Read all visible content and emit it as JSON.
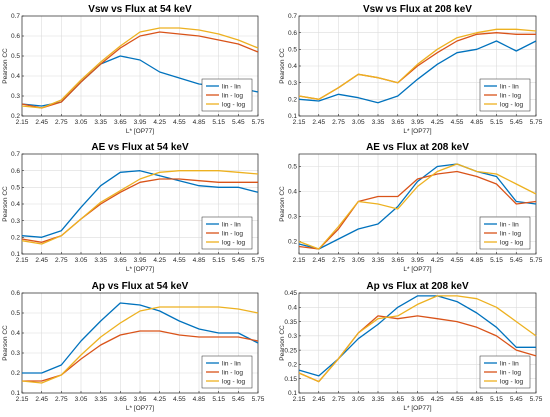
{
  "chart_data": [
    {
      "type": "line",
      "title": "Vsw vs Flux at 54 keV",
      "xlabel": "L* [OP77]",
      "ylabel": "Pearson CC",
      "x": [
        2.15,
        2.45,
        2.75,
        3.05,
        3.35,
        3.65,
        3.95,
        4.25,
        4.55,
        4.85,
        5.15,
        5.45,
        5.75
      ],
      "xticks": [
        "2.15",
        "2.45",
        "2.75",
        "3.05",
        "3.35",
        "3.65",
        "3.95",
        "4.25",
        "4.55",
        "4.85",
        "5.15",
        "5.45",
        "5.75"
      ],
      "ylim": [
        0.2,
        0.7
      ],
      "yticks": [
        "0.2",
        "0.3",
        "0.4",
        "0.5",
        "0.6",
        "0.7"
      ],
      "legend_position": "bottom-right",
      "series": [
        {
          "name": "lin - lin",
          "color": "#0072bd",
          "values": [
            0.26,
            0.25,
            0.27,
            0.37,
            0.46,
            0.5,
            0.48,
            0.42,
            0.39,
            0.36,
            0.35,
            0.34,
            0.32
          ]
        },
        {
          "name": "lin - log",
          "color": "#d95319",
          "values": [
            0.26,
            0.24,
            0.27,
            0.37,
            0.46,
            0.54,
            0.6,
            0.62,
            0.61,
            0.6,
            0.58,
            0.56,
            0.52
          ]
        },
        {
          "name": "log - log",
          "color": "#edb120",
          "values": [
            0.25,
            0.24,
            0.28,
            0.38,
            0.47,
            0.55,
            0.62,
            0.64,
            0.64,
            0.63,
            0.61,
            0.58,
            0.54
          ]
        }
      ]
    },
    {
      "type": "line",
      "title": "Vsw vs Flux at 208 keV",
      "xlabel": "L* [OP77]",
      "ylabel": "Pearson CC",
      "x": [
        2.15,
        2.45,
        2.75,
        3.05,
        3.35,
        3.65,
        3.95,
        4.25,
        4.55,
        4.85,
        5.15,
        5.45,
        5.75
      ],
      "xticks": [
        "2.15",
        "2.45",
        "2.75",
        "3.05",
        "3.35",
        "3.65",
        "3.95",
        "4.25",
        "4.55",
        "4.85",
        "5.15",
        "5.45",
        "5.75"
      ],
      "ylim": [
        0.1,
        0.7
      ],
      "yticks": [
        "0.1",
        "0.2",
        "0.3",
        "0.4",
        "0.5",
        "0.6",
        "0.7"
      ],
      "legend_position": "bottom-right",
      "series": [
        {
          "name": "lin - lin",
          "color": "#0072bd",
          "values": [
            0.2,
            0.19,
            0.23,
            0.21,
            0.18,
            0.22,
            0.32,
            0.41,
            0.48,
            0.5,
            0.55,
            0.49,
            0.55
          ]
        },
        {
          "name": "lin - log",
          "color": "#d95319",
          "values": [
            0.22,
            0.2,
            0.27,
            0.35,
            0.33,
            0.3,
            0.4,
            0.48,
            0.55,
            0.59,
            0.6,
            0.59,
            0.59
          ]
        },
        {
          "name": "log - log",
          "color": "#edb120",
          "values": [
            0.22,
            0.2,
            0.27,
            0.35,
            0.33,
            0.3,
            0.41,
            0.5,
            0.57,
            0.6,
            0.62,
            0.62,
            0.61
          ]
        }
      ]
    },
    {
      "type": "line",
      "title": "AE vs Flux at 54 keV",
      "xlabel": "L* [OP77]",
      "ylabel": "Pearson CC",
      "x": [
        2.15,
        2.45,
        2.75,
        3.05,
        3.35,
        3.65,
        3.95,
        4.25,
        4.55,
        4.85,
        5.15,
        5.45,
        5.75
      ],
      "xticks": [
        "2.15",
        "2.45",
        "2.75",
        "3.05",
        "3.35",
        "3.65",
        "3.95",
        "4.25",
        "4.55",
        "4.85",
        "5.15",
        "5.45",
        "5.75"
      ],
      "ylim": [
        0.1,
        0.7
      ],
      "yticks": [
        "0.1",
        "0.2",
        "0.3",
        "0.4",
        "0.5",
        "0.6",
        "0.7"
      ],
      "legend_position": "bottom-right",
      "series": [
        {
          "name": "lin - lin",
          "color": "#0072bd",
          "values": [
            0.21,
            0.2,
            0.24,
            0.38,
            0.51,
            0.59,
            0.6,
            0.57,
            0.54,
            0.51,
            0.5,
            0.5,
            0.47
          ]
        },
        {
          "name": "lin - log",
          "color": "#d95319",
          "values": [
            0.19,
            0.17,
            0.21,
            0.31,
            0.4,
            0.47,
            0.53,
            0.55,
            0.55,
            0.54,
            0.53,
            0.53,
            0.53
          ]
        },
        {
          "name": "log - log",
          "color": "#edb120",
          "values": [
            0.18,
            0.16,
            0.21,
            0.31,
            0.41,
            0.48,
            0.55,
            0.59,
            0.6,
            0.6,
            0.6,
            0.59,
            0.58
          ]
        }
      ]
    },
    {
      "type": "line",
      "title": "AE vs Flux at 208 keV",
      "xlabel": "L* [OP77]",
      "ylabel": "Pearson CC",
      "x": [
        2.15,
        2.45,
        2.75,
        3.05,
        3.35,
        3.65,
        3.95,
        4.25,
        4.55,
        4.85,
        5.15,
        5.45,
        5.75
      ],
      "xticks": [
        "2.15",
        "2.45",
        "2.75",
        "3.05",
        "3.35",
        "3.65",
        "3.95",
        "4.25",
        "4.55",
        "4.85",
        "5.15",
        "5.45",
        "5.75"
      ],
      "ylim": [
        0.15,
        0.55
      ],
      "yticks": [
        "0.2",
        "0.3",
        "0.4",
        "0.5"
      ],
      "legend_position": "bottom-right",
      "series": [
        {
          "name": "lin - lin",
          "color": "#0072bd",
          "values": [
            0.19,
            0.17,
            0.21,
            0.25,
            0.27,
            0.34,
            0.44,
            0.5,
            0.51,
            0.48,
            0.46,
            0.36,
            0.35
          ]
        },
        {
          "name": "lin - log",
          "color": "#d95319",
          "values": [
            0.18,
            0.17,
            0.25,
            0.36,
            0.38,
            0.38,
            0.45,
            0.47,
            0.48,
            0.46,
            0.43,
            0.35,
            0.36
          ]
        },
        {
          "name": "log - log",
          "color": "#edb120",
          "values": [
            0.2,
            0.17,
            0.26,
            0.36,
            0.35,
            0.33,
            0.42,
            0.48,
            0.51,
            0.48,
            0.47,
            0.43,
            0.39
          ]
        }
      ]
    },
    {
      "type": "line",
      "title": "Ap vs Flux at 54 keV",
      "xlabel": "L* [OP77]",
      "ylabel": "Pearson CC",
      "x": [
        2.15,
        2.45,
        2.75,
        3.05,
        3.35,
        3.65,
        3.95,
        4.25,
        4.55,
        4.85,
        5.15,
        5.45,
        5.75
      ],
      "xticks": [
        "2.15",
        "2.45",
        "2.75",
        "3.05",
        "3.35",
        "3.65",
        "3.95",
        "4.25",
        "4.55",
        "4.85",
        "5.15",
        "5.45",
        "5.75"
      ],
      "ylim": [
        0.1,
        0.6
      ],
      "yticks": [
        "0.1",
        "0.2",
        "0.3",
        "0.4",
        "0.5",
        "0.6"
      ],
      "legend_position": "bottom-right",
      "series": [
        {
          "name": "lin - lin",
          "color": "#0072bd",
          "values": [
            0.2,
            0.2,
            0.24,
            0.36,
            0.46,
            0.55,
            0.54,
            0.51,
            0.46,
            0.42,
            0.4,
            0.4,
            0.35
          ]
        },
        {
          "name": "lin - log",
          "color": "#d95319",
          "values": [
            0.16,
            0.16,
            0.19,
            0.27,
            0.34,
            0.39,
            0.41,
            0.41,
            0.39,
            0.38,
            0.38,
            0.38,
            0.36
          ]
        },
        {
          "name": "log - log",
          "color": "#edb120",
          "values": [
            0.16,
            0.15,
            0.19,
            0.29,
            0.38,
            0.45,
            0.51,
            0.53,
            0.53,
            0.53,
            0.53,
            0.52,
            0.5
          ]
        }
      ]
    },
    {
      "type": "line",
      "title": "Ap vs Flux at 208 keV",
      "xlabel": "L* [OP77]",
      "ylabel": "Pearson CC",
      "x": [
        2.15,
        2.45,
        2.75,
        3.05,
        3.35,
        3.65,
        3.95,
        4.25,
        4.55,
        4.85,
        5.15,
        5.45,
        5.75
      ],
      "xticks": [
        "2.15",
        "2.45",
        "2.75",
        "3.05",
        "3.35",
        "3.65",
        "3.95",
        "4.25",
        "4.55",
        "4.85",
        "5.15",
        "5.45",
        "5.75"
      ],
      "ylim": [
        0.1,
        0.45
      ],
      "yticks": [
        "0.1",
        "0.15",
        "0.2",
        "0.25",
        "0.3",
        "0.35",
        "0.4",
        "0.45"
      ],
      "legend_position": "bottom-right",
      "series": [
        {
          "name": "lin - lin",
          "color": "#0072bd",
          "values": [
            0.18,
            0.16,
            0.22,
            0.29,
            0.34,
            0.4,
            0.44,
            0.44,
            0.42,
            0.38,
            0.33,
            0.26,
            0.26
          ]
        },
        {
          "name": "lin - log",
          "color": "#d95319",
          "values": [
            0.17,
            0.14,
            0.22,
            0.31,
            0.37,
            0.36,
            0.37,
            0.36,
            0.35,
            0.33,
            0.3,
            0.25,
            0.23
          ]
        },
        {
          "name": "log - log",
          "color": "#edb120",
          "values": [
            0.17,
            0.14,
            0.22,
            0.31,
            0.36,
            0.37,
            0.41,
            0.44,
            0.44,
            0.43,
            0.4,
            0.35,
            0.3
          ]
        }
      ]
    }
  ]
}
